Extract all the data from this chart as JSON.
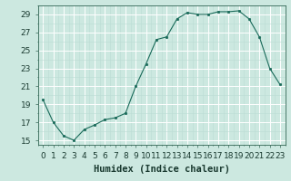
{
  "x": [
    0,
    1,
    2,
    3,
    4,
    5,
    6,
    7,
    8,
    9,
    10,
    11,
    12,
    13,
    14,
    15,
    16,
    17,
    18,
    19,
    20,
    21,
    22,
    23
  ],
  "y": [
    19.5,
    17.0,
    15.5,
    15.0,
    16.2,
    16.7,
    17.3,
    17.5,
    18.0,
    21.0,
    23.5,
    26.2,
    26.5,
    28.5,
    29.2,
    29.0,
    29.0,
    29.3,
    29.3,
    29.4,
    28.5,
    26.5,
    23.0,
    21.2
  ],
  "line_color": "#1a6b5a",
  "marker_color": "#1a6b5a",
  "bg_color": "#cce8e0",
  "grid_major_color": "#ffffff",
  "grid_minor_color": "#bbddd5",
  "xlabel": "Humidex (Indice chaleur)",
  "ylim": [
    14.5,
    30.0
  ],
  "xlim": [
    -0.5,
    23.5
  ],
  "yticks": [
    15,
    17,
    19,
    21,
    23,
    25,
    27,
    29
  ],
  "xticks": [
    0,
    1,
    2,
    3,
    4,
    5,
    6,
    7,
    8,
    9,
    10,
    11,
    12,
    13,
    14,
    15,
    16,
    17,
    18,
    19,
    20,
    21,
    22,
    23
  ],
  "tick_fontsize": 6.5,
  "label_fontsize": 7.5,
  "label_fontweight": "bold"
}
